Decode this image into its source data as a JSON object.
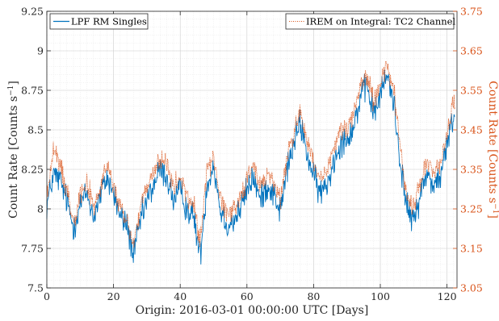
{
  "chart_data": {
    "type": "line",
    "xlabel": "Origin:  2016-03-01 00:00:00 UTC [Days]",
    "ylabel_left": "Count Rate [Counts s",
    "ylabel_left_unit_exp": "−1",
    "ylabel_left_close": "]",
    "ylabel_right": "Count Rate [Counts s",
    "ylabel_right_unit_exp": "−1",
    "ylabel_right_close": "]",
    "xlim": [
      0,
      123
    ],
    "ylim_left": [
      7.5,
      9.25
    ],
    "ylim_right": [
      3.05,
      3.75
    ],
    "x_ticks": [
      0,
      20,
      40,
      60,
      80,
      100,
      120
    ],
    "x_tick_labels": [
      "0",
      "20",
      "40",
      "60",
      "80",
      "100",
      "120"
    ],
    "y_left_ticks": [
      7.5,
      7.75,
      8,
      8.25,
      8.5,
      8.75,
      9,
      9.25
    ],
    "y_left_tick_labels": [
      "7.5",
      "7.75",
      "8",
      "8.25",
      "8.5",
      "8.75",
      "9",
      "9.25"
    ],
    "y_right_ticks": [
      3.05,
      3.15,
      3.25,
      3.35,
      3.45,
      3.55,
      3.65,
      3.75
    ],
    "y_right_tick_labels": [
      "3.05",
      "3.15",
      "3.25",
      "3.35",
      "3.45",
      "3.55",
      "3.65",
      "3.75"
    ],
    "grid": true,
    "series": [
      {
        "name": "LPF RM Singles",
        "axis": "left",
        "color": "#0072BD",
        "style": "solid",
        "x": [
          0,
          2,
          4,
          6,
          8,
          10,
          12,
          14,
          16,
          18,
          20,
          22,
          24,
          26,
          28,
          30,
          32,
          34,
          36,
          38,
          40,
          42,
          44,
          46,
          48,
          50,
          52,
          54,
          56,
          58,
          60,
          62,
          64,
          66,
          68,
          70,
          72,
          74,
          76,
          78,
          80,
          82,
          84,
          86,
          88,
          90,
          92,
          94,
          96,
          98,
          100,
          102,
          104,
          106,
          108,
          110,
          112,
          114,
          116,
          118,
          120,
          122
        ],
        "values": [
          8.02,
          8.22,
          8.18,
          8.05,
          7.88,
          8.03,
          8.1,
          7.95,
          8.08,
          8.2,
          8.1,
          7.95,
          7.9,
          7.7,
          7.92,
          8.05,
          8.15,
          8.25,
          8.2,
          8.05,
          8.12,
          8.0,
          7.95,
          7.7,
          8.15,
          8.28,
          8.0,
          7.9,
          7.92,
          8.0,
          8.12,
          8.2,
          8.05,
          8.15,
          8.1,
          7.98,
          8.25,
          8.4,
          8.55,
          8.35,
          8.2,
          8.1,
          8.15,
          8.3,
          8.42,
          8.45,
          8.52,
          8.7,
          8.78,
          8.6,
          8.72,
          8.85,
          8.68,
          8.3,
          8.0,
          7.92,
          8.1,
          8.22,
          8.15,
          8.2,
          8.4,
          8.6
        ]
      },
      {
        "name": "IREM on Integral:  TC2 Channel",
        "axis": "right",
        "color": "#D95319",
        "style": "dotted",
        "x": [
          0,
          2,
          4,
          6,
          8,
          10,
          12,
          14,
          16,
          18,
          20,
          22,
          24,
          26,
          28,
          30,
          32,
          34,
          36,
          38,
          40,
          42,
          44,
          46,
          48,
          50,
          52,
          54,
          56,
          58,
          60,
          62,
          64,
          66,
          68,
          70,
          72,
          74,
          76,
          78,
          80,
          82,
          84,
          86,
          88,
          90,
          92,
          94,
          96,
          98,
          100,
          102,
          104,
          106,
          108,
          110,
          112,
          114,
          116,
          118,
          120,
          122
        ],
        "values": [
          3.28,
          3.4,
          3.36,
          3.3,
          3.22,
          3.29,
          3.32,
          3.25,
          3.3,
          3.36,
          3.31,
          3.25,
          3.22,
          3.16,
          3.25,
          3.3,
          3.34,
          3.38,
          3.36,
          3.3,
          3.33,
          3.28,
          3.26,
          3.17,
          3.35,
          3.38,
          3.28,
          3.24,
          3.25,
          3.28,
          3.33,
          3.36,
          3.3,
          3.34,
          3.32,
          3.27,
          3.38,
          3.44,
          3.5,
          3.42,
          3.36,
          3.32,
          3.34,
          3.4,
          3.45,
          3.46,
          3.49,
          3.56,
          3.59,
          3.52,
          3.57,
          3.62,
          3.55,
          3.4,
          3.28,
          3.25,
          3.32,
          3.37,
          3.34,
          3.36,
          3.44,
          3.52
        ]
      }
    ],
    "legend": [
      {
        "label": "LPF RM Singles",
        "placement": "top-left"
      },
      {
        "label": "IREM on Integral:  TC2 Channel",
        "placement": "top-right"
      }
    ]
  }
}
